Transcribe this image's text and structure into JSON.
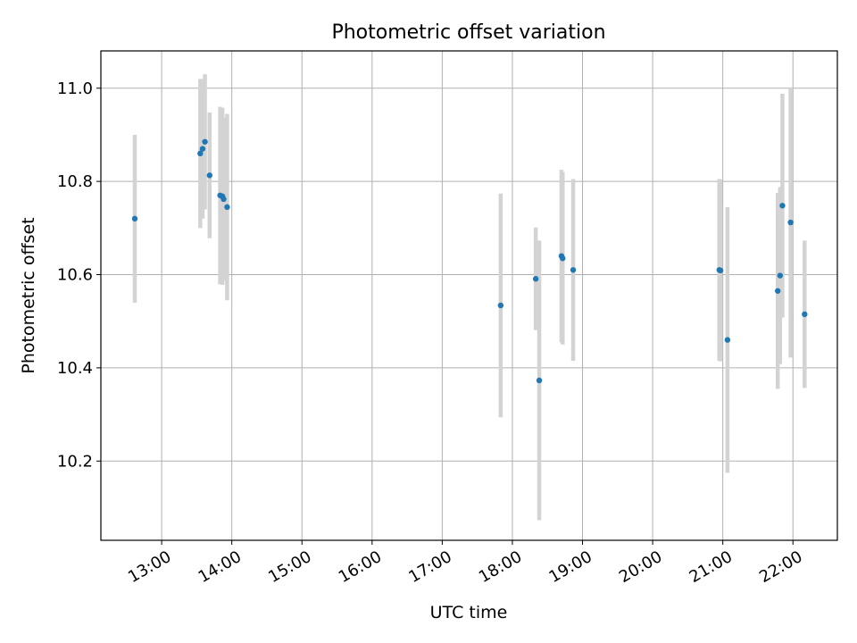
{
  "chart_data": {
    "type": "scatter",
    "title": "Photometric offset variation",
    "xlabel": "UTC time",
    "ylabel": "Photometric offset",
    "x_ticks": [
      "13:00",
      "14:00",
      "15:00",
      "16:00",
      "17:00",
      "18:00",
      "19:00",
      "20:00",
      "21:00",
      "22:00"
    ],
    "y_ticks": [
      "10.2",
      "10.4",
      "10.6",
      "10.8",
      "11.0"
    ],
    "xlim": [
      "12:08",
      "22:38"
    ],
    "ylim": [
      10.03,
      11.08
    ],
    "grid": true,
    "colors": {
      "point": "#1f77b4",
      "errorbar": "#d3d3d3",
      "grid": "#b0b0b0"
    },
    "points": [
      {
        "t": "12:37",
        "y": 10.72,
        "err": 0.18
      },
      {
        "t": "13:33",
        "y": 10.86,
        "err": 0.16
      },
      {
        "t": "13:35",
        "y": 10.87,
        "err": 0.15
      },
      {
        "t": "13:37",
        "y": 10.885,
        "err": 0.145
      },
      {
        "t": "13:41",
        "y": 10.813,
        "err": 0.135
      },
      {
        "t": "13:50",
        "y": 10.77,
        "err": 0.19
      },
      {
        "t": "13:52",
        "y": 10.768,
        "err": 0.19
      },
      {
        "t": "13:53",
        "y": 10.762,
        "err": 0.175
      },
      {
        "t": "13:56",
        "y": 10.745,
        "err": 0.2
      },
      {
        "t": "17:50",
        "y": 10.534,
        "err": 0.24
      },
      {
        "t": "18:20",
        "y": 10.591,
        "err": 0.11
      },
      {
        "t": "18:23",
        "y": 10.373,
        "err": 0.3
      },
      {
        "t": "18:42",
        "y": 10.64,
        "err": 0.185
      },
      {
        "t": "18:43",
        "y": 10.635,
        "err": 0.185
      },
      {
        "t": "18:52",
        "y": 10.61,
        "err": 0.195
      },
      {
        "t": "20:57",
        "y": 10.61,
        "err": 0.195
      },
      {
        "t": "20:58",
        "y": 10.609,
        "err": 0.195
      },
      {
        "t": "21:04",
        "y": 10.46,
        "err": 0.285
      },
      {
        "t": "21:47",
        "y": 10.565,
        "err": 0.21
      },
      {
        "t": "21:49",
        "y": 10.598,
        "err": 0.19
      },
      {
        "t": "21:51",
        "y": 10.748,
        "err": 0.24
      },
      {
        "t": "21:58",
        "y": 10.712,
        "err": 0.29
      },
      {
        "t": "22:10",
        "y": 10.515,
        "err": 0.158
      }
    ]
  }
}
